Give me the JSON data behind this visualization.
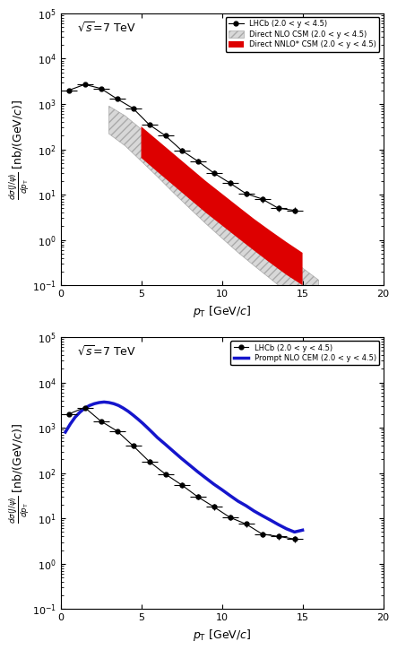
{
  "top_plot": {
    "lhcb_pt": [
      0.5,
      1.5,
      2.5,
      3.5,
      4.5,
      5.5,
      6.5,
      7.5,
      8.5,
      9.5,
      10.5,
      11.5,
      12.5,
      13.5,
      14.5
    ],
    "lhcb_y": [
      2000,
      2700,
      2200,
      1300,
      800,
      350,
      200,
      95,
      55,
      30,
      18,
      10.5,
      8.0,
      5.0,
      4.5
    ],
    "lhcb_xerr": [
      0.5,
      0.5,
      0.5,
      0.5,
      0.5,
      0.5,
      0.5,
      0.5,
      0.5,
      0.5,
      0.5,
      0.5,
      0.5,
      0.5,
      0.5
    ],
    "lhcb_yerr_lo": [
      180,
      200,
      150,
      100,
      60,
      30,
      18,
      10,
      6,
      4,
      2.5,
      1.5,
      1.2,
      0.8,
      0.7
    ],
    "lhcb_yerr_hi": [
      200,
      200,
      150,
      100,
      60,
      30,
      18,
      10,
      6,
      4,
      2.5,
      1.5,
      1.2,
      0.8,
      0.7
    ],
    "nlo_csm_pt": [
      3.0,
      4.0,
      5.0,
      6.0,
      7.0,
      8.0,
      9.0,
      10.0,
      11.0,
      12.0,
      13.0,
      14.0,
      15.0,
      16.0
    ],
    "nlo_csm_upper": [
      900,
      550,
      280,
      130,
      60,
      30,
      14,
      7.0,
      3.5,
      1.8,
      0.9,
      0.46,
      0.24,
      0.13
    ],
    "nlo_csm_lower": [
      220,
      120,
      55,
      25,
      11,
      5.0,
      2.3,
      1.1,
      0.53,
      0.27,
      0.14,
      0.072,
      0.038,
      0.02
    ],
    "nnlo_csm_pt": [
      5.0,
      6.0,
      7.0,
      8.0,
      9.0,
      10.0,
      11.0,
      12.0,
      13.0,
      14.0,
      15.0
    ],
    "nnlo_csm_upper": [
      320,
      160,
      80,
      40,
      20,
      10.5,
      5.5,
      2.9,
      1.6,
      0.9,
      0.52
    ],
    "nnlo_csm_lower": [
      65,
      32,
      16,
      8.0,
      4.0,
      2.1,
      1.1,
      0.58,
      0.31,
      0.17,
      0.1
    ],
    "label_lhcb": "LHCb (2.0 < y < 4.5)",
    "label_nlo": "Direct NLO CSM (2.0 < y < 4.5)",
    "label_nnlo": "Direct NNLO* CSM (2.0 < y < 4.5)",
    "sqrt_s_label": "$\\sqrt{s}$=7 TeV",
    "xlim": [
      0,
      20
    ],
    "ylim": [
      0.1,
      100000.0
    ],
    "nlo_csm_facecolor": "#d8d8d8",
    "nlo_csm_edgecolor": "#aaaaaa",
    "nlo_csm_hatch": "////",
    "nnlo_csm_color": "#dd0000",
    "data_color": "black"
  },
  "bottom_plot": {
    "lhcb_pt": [
      0.5,
      1.5,
      2.5,
      3.5,
      4.5,
      5.5,
      6.5,
      7.5,
      8.5,
      9.5,
      10.5,
      11.5,
      12.5,
      13.5,
      14.5
    ],
    "lhcb_y": [
      2000,
      2800,
      1400,
      850,
      400,
      180,
      95,
      55,
      30,
      18,
      10.5,
      7.5,
      4.5,
      4.0,
      3.5
    ],
    "lhcb_xerr": [
      0.5,
      0.5,
      0.5,
      0.5,
      0.5,
      0.5,
      0.5,
      0.5,
      0.5,
      0.5,
      0.5,
      0.5,
      0.5,
      0.5,
      0.5
    ],
    "lhcb_yerr": [
      200,
      200,
      120,
      80,
      40,
      20,
      10,
      7,
      4,
      2.5,
      1.5,
      1.0,
      0.7,
      0.6,
      0.5
    ],
    "cem_pt": [
      0.3,
      0.6,
      0.9,
      1.2,
      1.5,
      1.8,
      2.1,
      2.4,
      2.7,
      3.0,
      3.3,
      3.6,
      3.9,
      4.2,
      4.5,
      4.8,
      5.1,
      5.4,
      5.7,
      6.0,
      6.5,
      7.0,
      7.5,
      8.0,
      8.5,
      9.0,
      9.5,
      10.0,
      10.5,
      11.0,
      11.5,
      12.0,
      12.5,
      13.0,
      13.5,
      14.0,
      14.5,
      15.0
    ],
    "cem_y": [
      800,
      1200,
      1700,
      2200,
      2700,
      3100,
      3400,
      3600,
      3700,
      3600,
      3400,
      3100,
      2700,
      2300,
      1900,
      1550,
      1250,
      990,
      780,
      610,
      430,
      300,
      210,
      150,
      107,
      78,
      57,
      43,
      32,
      24,
      19,
      14.5,
      11.5,
      9.2,
      7.3,
      5.9,
      5.0,
      5.5
    ],
    "label_lhcb": "LHCb (2.0 < y < 4.5)",
    "label_cem": "Prompt NLO CEM (2.0 < y < 4.5)",
    "sqrt_s_label": "$\\sqrt{s}$=7 TeV",
    "xlim": [
      0,
      20
    ],
    "ylim": [
      0.1,
      100000.0
    ],
    "cem_color": "#1515cc",
    "data_color": "black"
  },
  "ylabel": "d$\\sigma$(J/$\\psi$) / d$p_{\\rm T}$  [nb/(GeV/$c$)]",
  "xlabel": "$p_{\\rm T}$ [GeV/$c$]"
}
